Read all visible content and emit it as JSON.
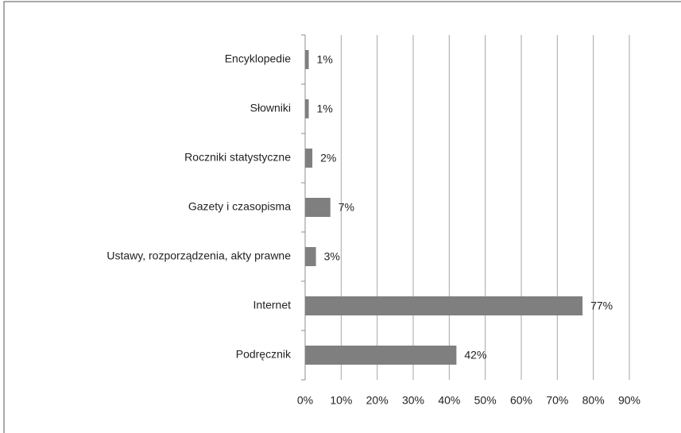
{
  "chart_data": {
    "type": "bar",
    "orientation": "horizontal",
    "categories": [
      "Encyklopedie",
      "Słowniki",
      "Roczniki statystyczne",
      "Gazety i czasopisma",
      "Ustawy, rozporządzenia, akty prawne",
      "Internet",
      "Podręcznik"
    ],
    "values": [
      1,
      1,
      2,
      7,
      3,
      77,
      42
    ],
    "value_labels": [
      "1%",
      "1%",
      "2%",
      "7%",
      "3%",
      "77%",
      "42%"
    ],
    "color": "#7f7f7f",
    "xlim": [
      0,
      90
    ],
    "xticks": [
      {
        "value": 0,
        "label": "0%"
      },
      {
        "value": 10,
        "label": "10%"
      },
      {
        "value": 20,
        "label": "20%"
      },
      {
        "value": 30,
        "label": "30%"
      },
      {
        "value": 40,
        "label": "40%"
      },
      {
        "value": 50,
        "label": "50%"
      },
      {
        "value": 60,
        "label": "60%"
      },
      {
        "value": 70,
        "label": "70%"
      },
      {
        "value": 80,
        "label": "80%"
      },
      {
        "value": 90,
        "label": "90%"
      }
    ],
    "grid": true
  }
}
